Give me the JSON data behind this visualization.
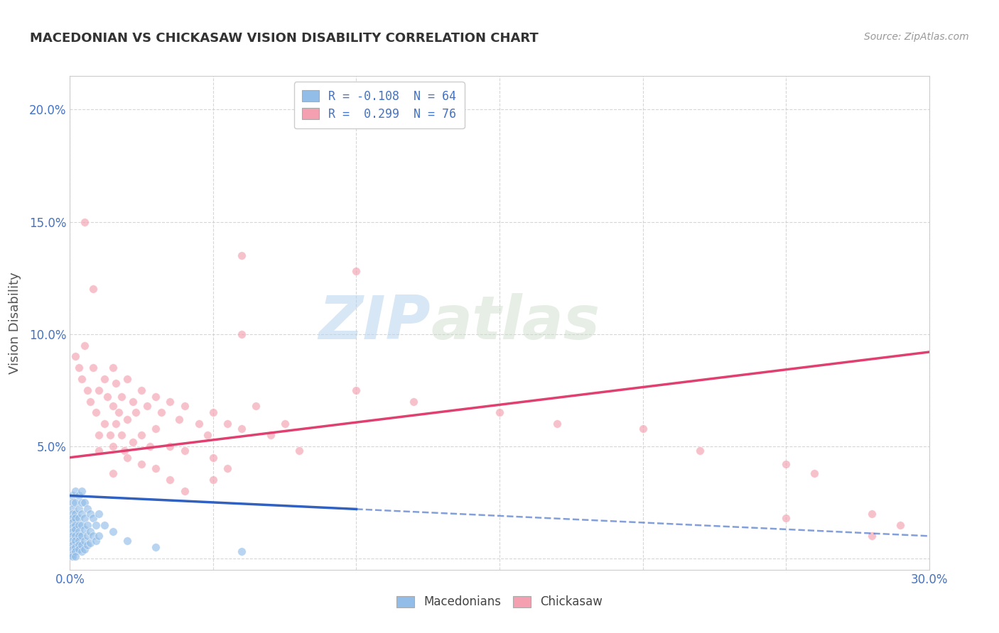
{
  "title": "MACEDONIAN VS CHICKASAW VISION DISABILITY CORRELATION CHART",
  "source": "Source: ZipAtlas.com",
  "ylabel": "Vision Disability",
  "xlim": [
    0.0,
    0.3
  ],
  "ylim": [
    -0.005,
    0.215
  ],
  "xtick_vals": [
    0.0,
    0.05,
    0.1,
    0.15,
    0.2,
    0.25,
    0.3
  ],
  "xtick_labels": [
    "0.0%",
    "",
    "",
    "",
    "",
    "",
    "30.0%"
  ],
  "ytick_vals": [
    0.0,
    0.05,
    0.1,
    0.15,
    0.2
  ],
  "ytick_labels": [
    "",
    "5.0%",
    "10.0%",
    "15.0%",
    "20.0%"
  ],
  "legend_R_mac": "R = -0.108",
  "legend_N_mac": "N = 64",
  "legend_R_chick": "R =  0.299",
  "legend_N_chick": "N = 76",
  "macedonian_color": "#92bde8",
  "chickasaw_color": "#f4a0b0",
  "trendline_macedonian_color": "#3060c0",
  "trendline_chickasaw_color": "#e04070",
  "background_color": "#ffffff",
  "grid_color": "#cccccc",
  "watermark_zip": "ZIP",
  "watermark_atlas": "atlas",
  "macedonian_points": [
    [
      0.001,
      0.028
    ],
    [
      0.001,
      0.025
    ],
    [
      0.001,
      0.022
    ],
    [
      0.001,
      0.02
    ],
    [
      0.001,
      0.018
    ],
    [
      0.001,
      0.016
    ],
    [
      0.001,
      0.014
    ],
    [
      0.001,
      0.012
    ],
    [
      0.001,
      0.01
    ],
    [
      0.001,
      0.008
    ],
    [
      0.001,
      0.006
    ],
    [
      0.001,
      0.004
    ],
    [
      0.001,
      0.002
    ],
    [
      0.001,
      0.001
    ],
    [
      0.002,
      0.03
    ],
    [
      0.002,
      0.025
    ],
    [
      0.002,
      0.02
    ],
    [
      0.002,
      0.018
    ],
    [
      0.002,
      0.015
    ],
    [
      0.002,
      0.013
    ],
    [
      0.002,
      0.01
    ],
    [
      0.002,
      0.008
    ],
    [
      0.002,
      0.005
    ],
    [
      0.002,
      0.003
    ],
    [
      0.002,
      0.001
    ],
    [
      0.003,
      0.028
    ],
    [
      0.003,
      0.022
    ],
    [
      0.003,
      0.018
    ],
    [
      0.003,
      0.015
    ],
    [
      0.003,
      0.012
    ],
    [
      0.003,
      0.01
    ],
    [
      0.003,
      0.008
    ],
    [
      0.003,
      0.006
    ],
    [
      0.003,
      0.004
    ],
    [
      0.004,
      0.03
    ],
    [
      0.004,
      0.025
    ],
    [
      0.004,
      0.02
    ],
    [
      0.004,
      0.015
    ],
    [
      0.004,
      0.01
    ],
    [
      0.004,
      0.006
    ],
    [
      0.004,
      0.003
    ],
    [
      0.005,
      0.025
    ],
    [
      0.005,
      0.018
    ],
    [
      0.005,
      0.013
    ],
    [
      0.005,
      0.008
    ],
    [
      0.005,
      0.004
    ],
    [
      0.006,
      0.022
    ],
    [
      0.006,
      0.015
    ],
    [
      0.006,
      0.01
    ],
    [
      0.006,
      0.006
    ],
    [
      0.007,
      0.02
    ],
    [
      0.007,
      0.012
    ],
    [
      0.007,
      0.007
    ],
    [
      0.008,
      0.018
    ],
    [
      0.008,
      0.01
    ],
    [
      0.009,
      0.015
    ],
    [
      0.009,
      0.008
    ],
    [
      0.01,
      0.02
    ],
    [
      0.01,
      0.01
    ],
    [
      0.012,
      0.015
    ],
    [
      0.015,
      0.012
    ],
    [
      0.02,
      0.008
    ],
    [
      0.03,
      0.005
    ],
    [
      0.06,
      0.003
    ]
  ],
  "chickasaw_points": [
    [
      0.002,
      0.09
    ],
    [
      0.003,
      0.085
    ],
    [
      0.004,
      0.08
    ],
    [
      0.005,
      0.095
    ],
    [
      0.006,
      0.075
    ],
    [
      0.007,
      0.07
    ],
    [
      0.008,
      0.085
    ],
    [
      0.009,
      0.065
    ],
    [
      0.01,
      0.075
    ],
    [
      0.01,
      0.055
    ],
    [
      0.01,
      0.048
    ],
    [
      0.012,
      0.08
    ],
    [
      0.012,
      0.06
    ],
    [
      0.013,
      0.072
    ],
    [
      0.014,
      0.055
    ],
    [
      0.015,
      0.085
    ],
    [
      0.015,
      0.068
    ],
    [
      0.015,
      0.05
    ],
    [
      0.015,
      0.038
    ],
    [
      0.016,
      0.078
    ],
    [
      0.016,
      0.06
    ],
    [
      0.017,
      0.065
    ],
    [
      0.018,
      0.055
    ],
    [
      0.018,
      0.072
    ],
    [
      0.019,
      0.048
    ],
    [
      0.02,
      0.08
    ],
    [
      0.02,
      0.062
    ],
    [
      0.02,
      0.045
    ],
    [
      0.022,
      0.07
    ],
    [
      0.022,
      0.052
    ],
    [
      0.023,
      0.065
    ],
    [
      0.025,
      0.075
    ],
    [
      0.025,
      0.055
    ],
    [
      0.025,
      0.042
    ],
    [
      0.027,
      0.068
    ],
    [
      0.028,
      0.05
    ],
    [
      0.03,
      0.072
    ],
    [
      0.03,
      0.058
    ],
    [
      0.03,
      0.04
    ],
    [
      0.032,
      0.065
    ],
    [
      0.035,
      0.07
    ],
    [
      0.035,
      0.05
    ],
    [
      0.038,
      0.062
    ],
    [
      0.04,
      0.068
    ],
    [
      0.04,
      0.048
    ],
    [
      0.045,
      0.06
    ],
    [
      0.048,
      0.055
    ],
    [
      0.05,
      0.065
    ],
    [
      0.05,
      0.045
    ],
    [
      0.055,
      0.06
    ],
    [
      0.055,
      0.04
    ],
    [
      0.06,
      0.058
    ],
    [
      0.065,
      0.068
    ],
    [
      0.07,
      0.055
    ],
    [
      0.075,
      0.06
    ],
    [
      0.08,
      0.048
    ],
    [
      0.005,
      0.15
    ],
    [
      0.1,
      0.128
    ],
    [
      0.06,
      0.135
    ],
    [
      0.008,
      0.12
    ],
    [
      0.06,
      0.1
    ],
    [
      0.1,
      0.075
    ],
    [
      0.12,
      0.07
    ],
    [
      0.15,
      0.065
    ],
    [
      0.17,
      0.06
    ],
    [
      0.2,
      0.058
    ],
    [
      0.22,
      0.048
    ],
    [
      0.25,
      0.042
    ],
    [
      0.26,
      0.038
    ],
    [
      0.28,
      0.02
    ],
    [
      0.29,
      0.015
    ],
    [
      0.035,
      0.035
    ],
    [
      0.04,
      0.03
    ],
    [
      0.05,
      0.035
    ],
    [
      0.28,
      0.01
    ],
    [
      0.25,
      0.018
    ]
  ],
  "trendline_chick_x0": 0.0,
  "trendline_chick_y0": 0.045,
  "trendline_chick_x1": 0.3,
  "trendline_chick_y1": 0.092,
  "trendline_mac_solid_x0": 0.0,
  "trendline_mac_solid_y0": 0.028,
  "trendline_mac_solid_x1": 0.1,
  "trendline_mac_solid_y1": 0.022,
  "trendline_mac_dash_x0": 0.1,
  "trendline_mac_dash_y0": 0.022,
  "trendline_mac_dash_x1": 0.3,
  "trendline_mac_dash_y1": 0.01
}
